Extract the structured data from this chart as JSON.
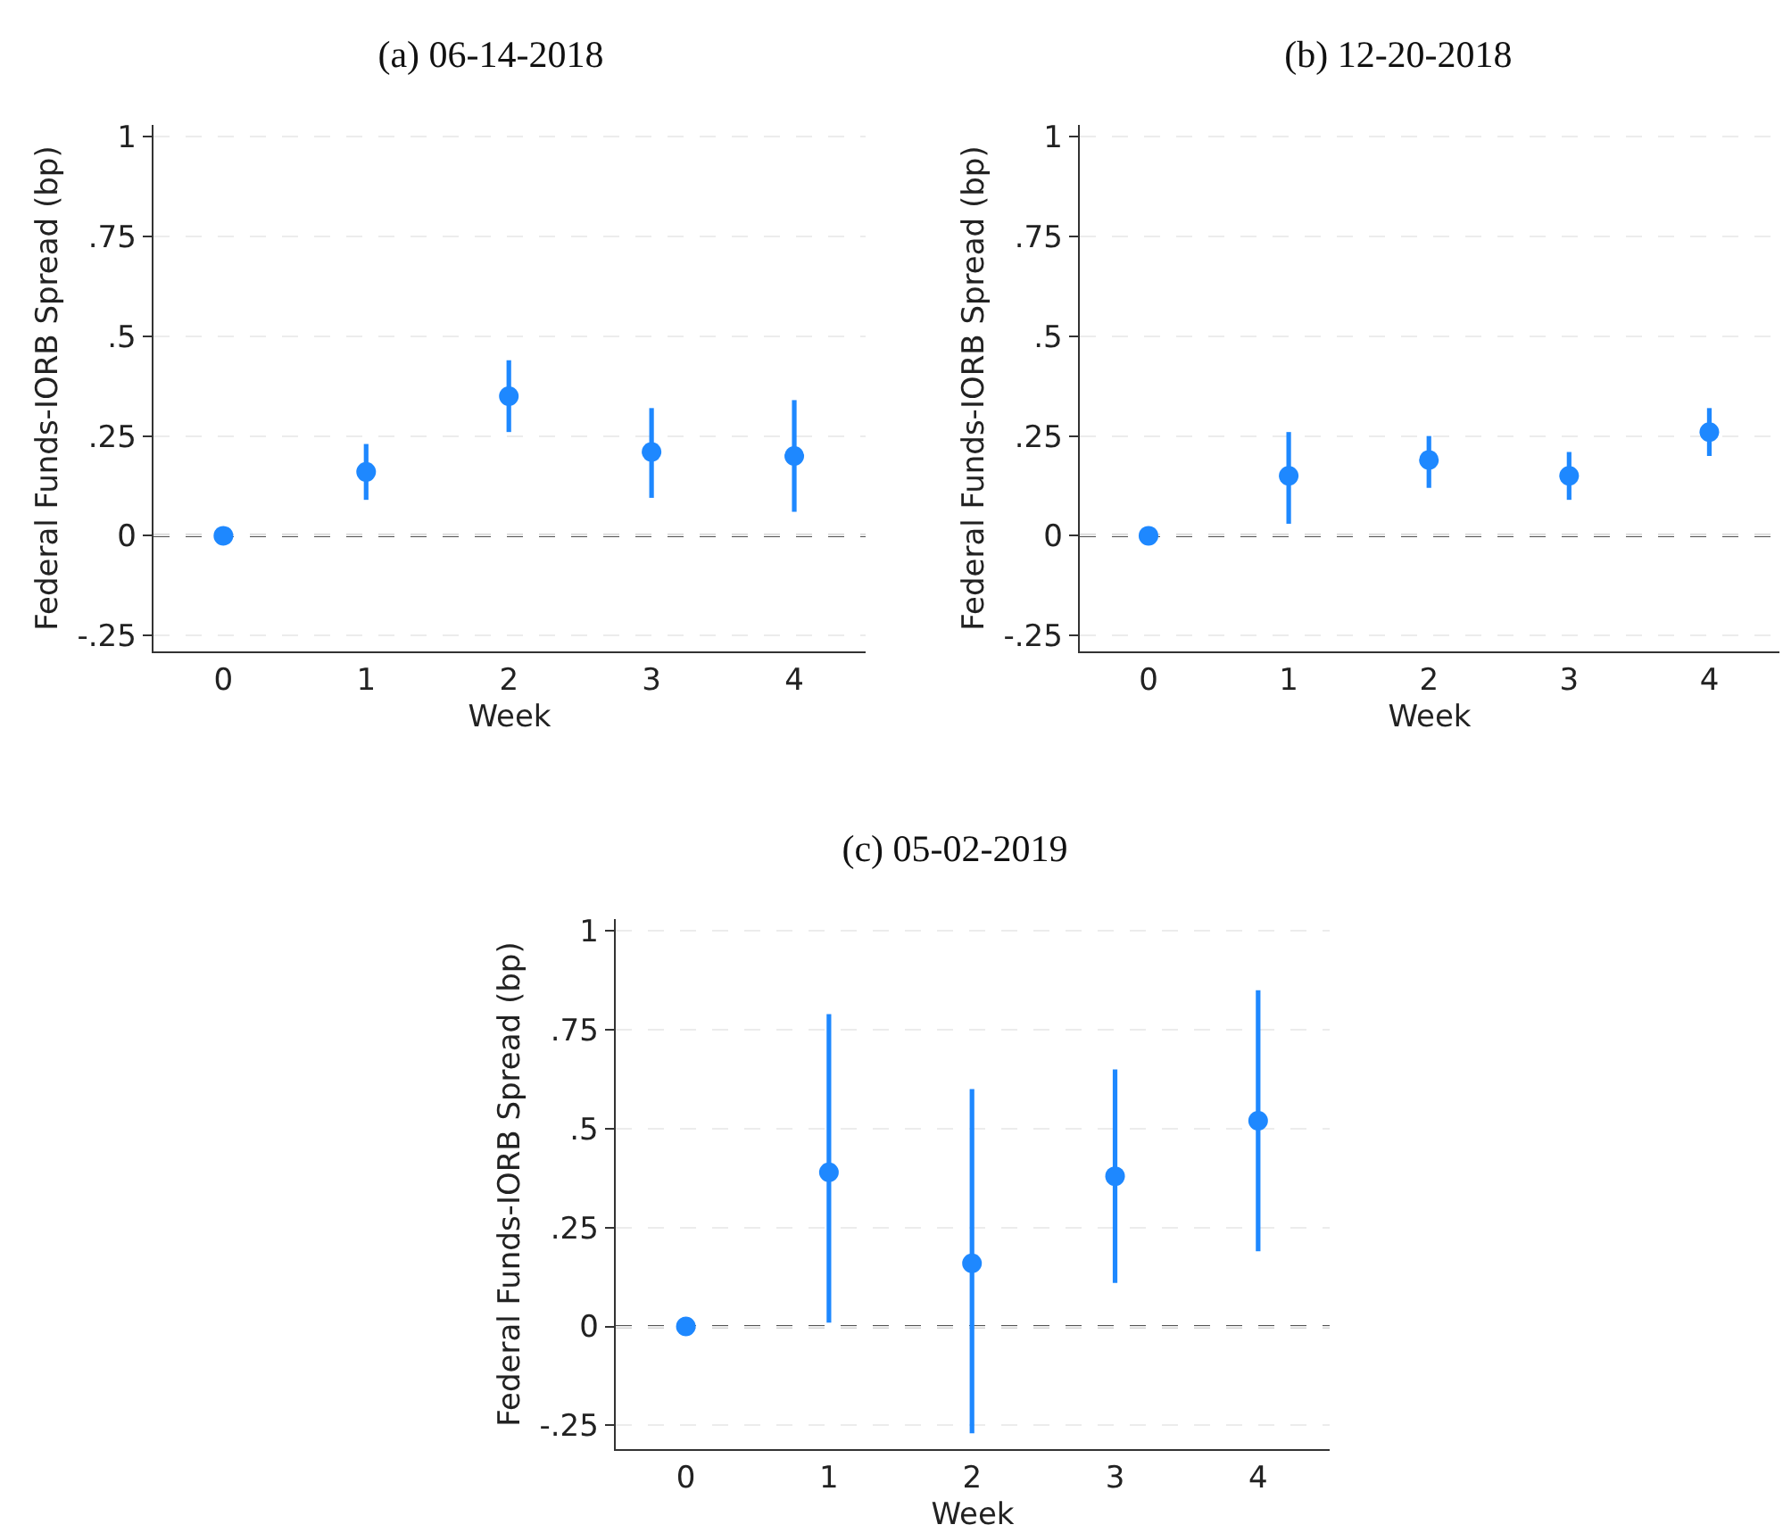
{
  "chart_data": [
    {
      "type": "scatter",
      "title": "(a) 06-14-2018",
      "xlabel": "Week",
      "ylabel": "Federal Funds-IORB Spread (bp)",
      "x": [
        0,
        1,
        2,
        3,
        4
      ],
      "xlim": [
        -0.49,
        4.5
      ],
      "xticks": [
        0,
        1,
        2,
        3,
        4
      ],
      "ylim": [
        -0.29,
        1.03
      ],
      "yticks": [
        {
          "value": -0.25,
          "label": "-.25"
        },
        {
          "value": 0,
          "label": "0"
        },
        {
          "value": 0.25,
          "label": ".25"
        },
        {
          "value": 0.5,
          "label": ".5"
        },
        {
          "value": 0.75,
          "label": ".75"
        },
        {
          "value": 1,
          "label": "1"
        }
      ],
      "grid": "y",
      "marker": "circle",
      "series": [
        {
          "color": "#1e88ff",
          "values": [
            0,
            0.16,
            0.35,
            0.21,
            0.2
          ],
          "errors": [
            null,
            [
              0.09,
              0.23
            ],
            [
              0.26,
              0.44
            ],
            [
              0.095,
              0.32
            ],
            [
              0.06,
              0.34
            ]
          ]
        }
      ],
      "ref_lines": [
        {
          "axis": "y",
          "value": 0,
          "color": "#555555",
          "line_style": "dashed"
        }
      ]
    },
    {
      "type": "scatter",
      "title": "(b) 12-20-2018",
      "xlabel": "Week",
      "ylabel": "Federal Funds-IORB Spread (bp)",
      "x": [
        0,
        1,
        2,
        3,
        4
      ],
      "xlim": [
        -0.49,
        4.5
      ],
      "xticks": [
        0,
        1,
        2,
        3,
        4
      ],
      "ylim": [
        -0.29,
        1.03
      ],
      "yticks": [
        {
          "value": -0.25,
          "label": "-.25"
        },
        {
          "value": 0,
          "label": "0"
        },
        {
          "value": 0.25,
          "label": ".25"
        },
        {
          "value": 0.5,
          "label": ".5"
        },
        {
          "value": 0.75,
          "label": ".75"
        },
        {
          "value": 1,
          "label": "1"
        }
      ],
      "grid": "y",
      "marker": "circle",
      "series": [
        {
          "color": "#1e88ff",
          "values": [
            0,
            0.15,
            0.19,
            0.15,
            0.26
          ],
          "errors": [
            null,
            [
              0.03,
              0.26
            ],
            [
              0.12,
              0.25
            ],
            [
              0.09,
              0.21
            ],
            [
              0.2,
              0.32
            ]
          ]
        }
      ],
      "ref_lines": [
        {
          "axis": "y",
          "value": 0,
          "color": "#555555",
          "line_style": "dashed"
        }
      ]
    },
    {
      "type": "scatter",
      "title": "(c) 05-02-2019",
      "xlabel": "Week",
      "ylabel": "Federal Funds-IORB Spread (bp)",
      "x": [
        0,
        1,
        2,
        3,
        4
      ],
      "xlim": [
        -0.49,
        4.5
      ],
      "xticks": [
        0,
        1,
        2,
        3,
        4
      ],
      "ylim": [
        -0.31,
        1.03
      ],
      "yticks": [
        {
          "value": -0.25,
          "label": "-.25"
        },
        {
          "value": 0,
          "label": "0"
        },
        {
          "value": 0.25,
          "label": ".25"
        },
        {
          "value": 0.5,
          "label": ".5"
        },
        {
          "value": 0.75,
          "label": ".75"
        },
        {
          "value": 1,
          "label": "1"
        }
      ],
      "grid": "y",
      "marker": "circle",
      "series": [
        {
          "color": "#1e88ff",
          "values": [
            0,
            0.39,
            0.16,
            0.38,
            0.52
          ],
          "errors": [
            null,
            [
              0.01,
              0.79
            ],
            [
              -0.27,
              0.6
            ],
            [
              0.11,
              0.65
            ],
            [
              0.19,
              0.85
            ]
          ]
        }
      ],
      "ref_lines": [
        {
          "axis": "y",
          "value": 0,
          "color": "#555555",
          "line_style": "dashed"
        }
      ]
    }
  ]
}
